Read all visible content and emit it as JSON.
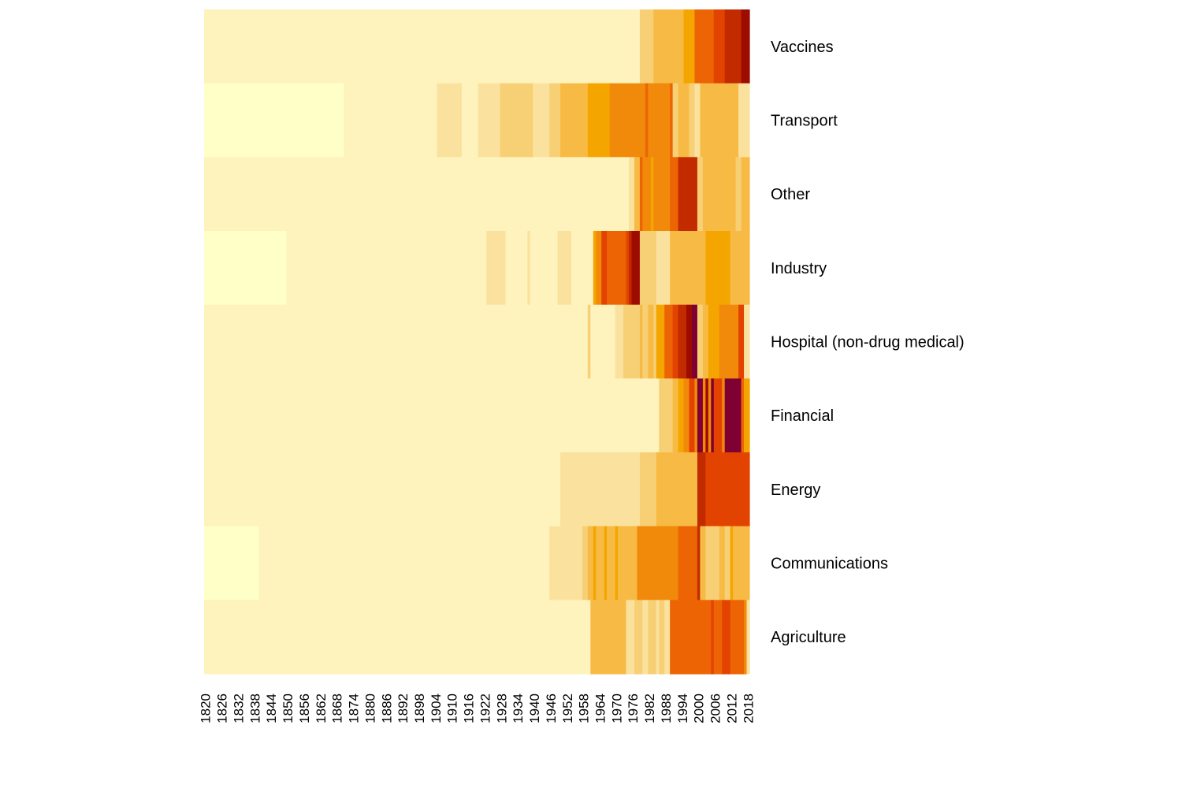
{
  "chart_data": {
    "type": "heatmap",
    "title": "",
    "xlabel": "",
    "ylabel": "",
    "x_start": 1820,
    "x_end": 2019,
    "x_tick_labels": [
      "1820",
      "1826",
      "1832",
      "1838",
      "1844",
      "1850",
      "1856",
      "1862",
      "1868",
      "1874",
      "1880",
      "1886",
      "1892",
      "1898",
      "1904",
      "1910",
      "1916",
      "1922",
      "1928",
      "1934",
      "1940",
      "1946",
      "1952",
      "1958",
      "1964",
      "1970",
      "1976",
      "1982",
      "1988",
      "1994",
      "2000",
      "2006",
      "2012",
      "2018"
    ],
    "color_scale": [
      "#FFFFC8",
      "#FEF3BC",
      "#FAE29E",
      "#F7D076",
      "#F7BB45",
      "#F5A500",
      "#F18A0A",
      "#EC6404",
      "#E34300",
      "#C22A00",
      "#9E0B00",
      "#7F0033"
    ],
    "legend": "none",
    "rows": [
      {
        "label": "Vaccines",
        "segments": [
          {
            "from": 1820,
            "to": 1979,
            "level": 1
          },
          {
            "from": 1979,
            "to": 1984,
            "level": 3
          },
          {
            "from": 1984,
            "to": 1995,
            "level": 4
          },
          {
            "from": 1995,
            "to": 1999,
            "level": 5
          },
          {
            "from": 1999,
            "to": 2006,
            "level": 7
          },
          {
            "from": 2006,
            "to": 2010,
            "level": 8
          },
          {
            "from": 2010,
            "to": 2014,
            "level": 9
          },
          {
            "from": 2014,
            "to": 2016,
            "level": 9
          },
          {
            "from": 2016,
            "to": 2019,
            "level": 10
          }
        ]
      },
      {
        "label": "Transport",
        "segments": [
          {
            "from": 1820,
            "to": 1871,
            "level": 0
          },
          {
            "from": 1871,
            "to": 1905,
            "level": 1
          },
          {
            "from": 1905,
            "to": 1914,
            "level": 2
          },
          {
            "from": 1914,
            "to": 1920,
            "level": 1
          },
          {
            "from": 1920,
            "to": 1928,
            "level": 2
          },
          {
            "from": 1928,
            "to": 1940,
            "level": 3
          },
          {
            "from": 1940,
            "to": 1946,
            "level": 2
          },
          {
            "from": 1946,
            "to": 1950,
            "level": 3
          },
          {
            "from": 1950,
            "to": 1960,
            "level": 4
          },
          {
            "from": 1960,
            "to": 1968,
            "level": 5
          },
          {
            "from": 1968,
            "to": 1981,
            "level": 6
          },
          {
            "from": 1981,
            "to": 1982,
            "level": 7
          },
          {
            "from": 1982,
            "to": 1990,
            "level": 6
          },
          {
            "from": 1990,
            "to": 1991,
            "level": 7
          },
          {
            "from": 1991,
            "to": 1993,
            "level": 3
          },
          {
            "from": 1993,
            "to": 1997,
            "level": 4
          },
          {
            "from": 1997,
            "to": 1999,
            "level": 3
          },
          {
            "from": 1999,
            "to": 2001,
            "level": 2
          },
          {
            "from": 2001,
            "to": 2015,
            "level": 4
          },
          {
            "from": 2015,
            "to": 2019,
            "level": 2
          }
        ]
      },
      {
        "label": "Other",
        "segments": [
          {
            "from": 1820,
            "to": 1975,
            "level": 1
          },
          {
            "from": 1975,
            "to": 1977,
            "level": 2
          },
          {
            "from": 1977,
            "to": 1979,
            "level": 4
          },
          {
            "from": 1979,
            "to": 1980,
            "level": 7
          },
          {
            "from": 1980,
            "to": 1983,
            "level": 6
          },
          {
            "from": 1983,
            "to": 1984,
            "level": 5
          },
          {
            "from": 1984,
            "to": 1990,
            "level": 6
          },
          {
            "from": 1990,
            "to": 1993,
            "level": 7
          },
          {
            "from": 1993,
            "to": 2000,
            "level": 9
          },
          {
            "from": 2000,
            "to": 2002,
            "level": 3
          },
          {
            "from": 2002,
            "to": 2014,
            "level": 4
          },
          {
            "from": 2014,
            "to": 2016,
            "level": 3
          },
          {
            "from": 2016,
            "to": 2019,
            "level": 4
          }
        ]
      },
      {
        "label": "Industry",
        "segments": [
          {
            "from": 1820,
            "to": 1850,
            "level": 0
          },
          {
            "from": 1850,
            "to": 1923,
            "level": 1
          },
          {
            "from": 1923,
            "to": 1930,
            "level": 2
          },
          {
            "from": 1930,
            "to": 1938,
            "level": 1
          },
          {
            "from": 1938,
            "to": 1939,
            "level": 2
          },
          {
            "from": 1939,
            "to": 1949,
            "level": 1
          },
          {
            "from": 1949,
            "to": 1954,
            "level": 2
          },
          {
            "from": 1954,
            "to": 1962,
            "level": 1
          },
          {
            "from": 1962,
            "to": 1963,
            "level": 5
          },
          {
            "from": 1963,
            "to": 1965,
            "level": 6
          },
          {
            "from": 1965,
            "to": 1967,
            "level": 8
          },
          {
            "from": 1967,
            "to": 1974,
            "level": 7
          },
          {
            "from": 1974,
            "to": 1975,
            "level": 8
          },
          {
            "from": 1975,
            "to": 1976,
            "level": 9
          },
          {
            "from": 1976,
            "to": 1979,
            "level": 10
          },
          {
            "from": 1979,
            "to": 1985,
            "level": 3
          },
          {
            "from": 1985,
            "to": 1990,
            "level": 2
          },
          {
            "from": 1990,
            "to": 2003,
            "level": 4
          },
          {
            "from": 2003,
            "to": 2012,
            "level": 5
          },
          {
            "from": 2012,
            "to": 2019,
            "level": 4
          }
        ]
      },
      {
        "label": "Hospital (non-drug medical)",
        "segments": [
          {
            "from": 1820,
            "to": 1960,
            "level": 1
          },
          {
            "from": 1960,
            "to": 1961,
            "level": 3
          },
          {
            "from": 1961,
            "to": 1970,
            "level": 1
          },
          {
            "from": 1970,
            "to": 1973,
            "level": 2
          },
          {
            "from": 1973,
            "to": 1979,
            "level": 3
          },
          {
            "from": 1979,
            "to": 1980,
            "level": 4
          },
          {
            "from": 1980,
            "to": 1982,
            "level": 3
          },
          {
            "from": 1982,
            "to": 1984,
            "level": 4
          },
          {
            "from": 1984,
            "to": 1985,
            "level": 3
          },
          {
            "from": 1985,
            "to": 1988,
            "level": 5
          },
          {
            "from": 1988,
            "to": 1991,
            "level": 7
          },
          {
            "from": 1991,
            "to": 1993,
            "level": 8
          },
          {
            "from": 1993,
            "to": 1996,
            "level": 9
          },
          {
            "from": 1996,
            "to": 1998,
            "level": 10
          },
          {
            "from": 1998,
            "to": 2000,
            "level": 11
          },
          {
            "from": 2000,
            "to": 2002,
            "level": 3
          },
          {
            "from": 2002,
            "to": 2004,
            "level": 4
          },
          {
            "from": 2004,
            "to": 2008,
            "level": 5
          },
          {
            "from": 2008,
            "to": 2015,
            "level": 6
          },
          {
            "from": 2015,
            "to": 2017,
            "level": 8
          },
          {
            "from": 2017,
            "to": 2019,
            "level": 2
          }
        ]
      },
      {
        "label": "Financial",
        "segments": [
          {
            "from": 1820,
            "to": 1986,
            "level": 1
          },
          {
            "from": 1986,
            "to": 1991,
            "level": 3
          },
          {
            "from": 1991,
            "to": 1993,
            "level": 4
          },
          {
            "from": 1993,
            "to": 1995,
            "level": 5
          },
          {
            "from": 1995,
            "to": 1997,
            "level": 6
          },
          {
            "from": 1997,
            "to": 1999,
            "level": 8
          },
          {
            "from": 1999,
            "to": 2000,
            "level": 6
          },
          {
            "from": 2000,
            "to": 2002,
            "level": 11
          },
          {
            "from": 2002,
            "to": 2003,
            "level": 6
          },
          {
            "from": 2003,
            "to": 2004,
            "level": 10
          },
          {
            "from": 2004,
            "to": 2005,
            "level": 6
          },
          {
            "from": 2005,
            "to": 2006,
            "level": 11
          },
          {
            "from": 2006,
            "to": 2009,
            "level": 8
          },
          {
            "from": 2009,
            "to": 2010,
            "level": 6
          },
          {
            "from": 2010,
            "to": 2016,
            "level": 11
          },
          {
            "from": 2016,
            "to": 2017,
            "level": 7
          },
          {
            "from": 2017,
            "to": 2019,
            "level": 5
          }
        ]
      },
      {
        "label": "Energy",
        "segments": [
          {
            "from": 1820,
            "to": 1950,
            "level": 1
          },
          {
            "from": 1950,
            "to": 1979,
            "level": 2
          },
          {
            "from": 1979,
            "to": 1985,
            "level": 3
          },
          {
            "from": 1985,
            "to": 2000,
            "level": 4
          },
          {
            "from": 2000,
            "to": 2003,
            "level": 9
          },
          {
            "from": 2003,
            "to": 2019,
            "level": 8
          }
        ]
      },
      {
        "label": "Communications",
        "segments": [
          {
            "from": 1820,
            "to": 1840,
            "level": 0
          },
          {
            "from": 1840,
            "to": 1946,
            "level": 1
          },
          {
            "from": 1946,
            "to": 1958,
            "level": 2
          },
          {
            "from": 1958,
            "to": 1960,
            "level": 3
          },
          {
            "from": 1960,
            "to": 1962,
            "level": 4
          },
          {
            "from": 1962,
            "to": 1963,
            "level": 5
          },
          {
            "from": 1963,
            "to": 1966,
            "level": 4
          },
          {
            "from": 1966,
            "to": 1967,
            "level": 5
          },
          {
            "from": 1967,
            "to": 1970,
            "level": 4
          },
          {
            "from": 1970,
            "to": 1971,
            "level": 5
          },
          {
            "from": 1971,
            "to": 1978,
            "level": 4
          },
          {
            "from": 1978,
            "to": 1993,
            "level": 6
          },
          {
            "from": 1993,
            "to": 2000,
            "level": 7
          },
          {
            "from": 2000,
            "to": 2001,
            "level": 9
          },
          {
            "from": 2001,
            "to": 2003,
            "level": 4
          },
          {
            "from": 2003,
            "to": 2008,
            "level": 3
          },
          {
            "from": 2008,
            "to": 2010,
            "level": 4
          },
          {
            "from": 2010,
            "to": 2012,
            "level": 3
          },
          {
            "from": 2012,
            "to": 2013,
            "level": 5
          },
          {
            "from": 2013,
            "to": 2019,
            "level": 4
          }
        ]
      },
      {
        "label": "Agriculture",
        "segments": [
          {
            "from": 1820,
            "to": 1961,
            "level": 1
          },
          {
            "from": 1961,
            "to": 1974,
            "level": 4
          },
          {
            "from": 1974,
            "to": 1977,
            "level": 2
          },
          {
            "from": 1977,
            "to": 1980,
            "level": 3
          },
          {
            "from": 1980,
            "to": 1982,
            "level": 2
          },
          {
            "from": 1982,
            "to": 1985,
            "level": 3
          },
          {
            "from": 1985,
            "to": 1986,
            "level": 2
          },
          {
            "from": 1986,
            "to": 1988,
            "level": 3
          },
          {
            "from": 1988,
            "to": 1990,
            "level": 2
          },
          {
            "from": 1990,
            "to": 2005,
            "level": 7
          },
          {
            "from": 2005,
            "to": 2006,
            "level": 8
          },
          {
            "from": 2006,
            "to": 2009,
            "level": 7
          },
          {
            "from": 2009,
            "to": 2012,
            "level": 8
          },
          {
            "from": 2012,
            "to": 2017,
            "level": 7
          },
          {
            "from": 2017,
            "to": 2018,
            "level": 6
          },
          {
            "from": 2018,
            "to": 2019,
            "level": 2
          }
        ]
      }
    ]
  }
}
